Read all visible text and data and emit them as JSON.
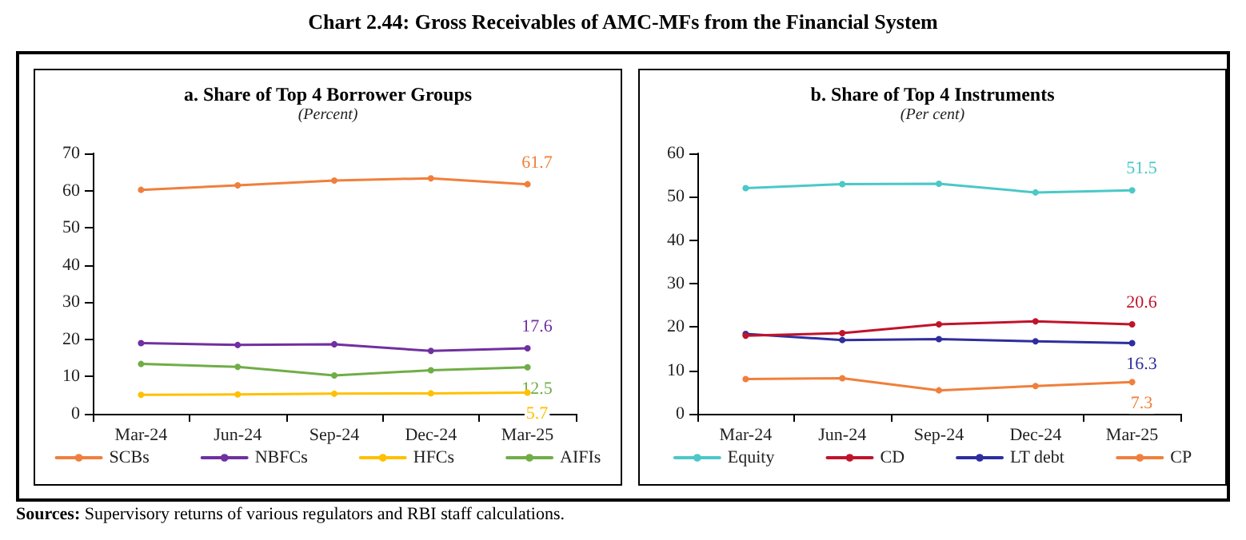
{
  "chart_data": [
    {
      "type": "line",
      "title": "a. Share of Top 4 Borrower Groups",
      "subtitle": "(Percent)",
      "annotations": [
        "Chart 2.44: Gross Receivables of AMC-MFs from the Financial System",
        "Sources: Supervisory returns of various regulators and RBI staff calculations."
      ],
      "categories": [
        "Mar-24",
        "Jun-24",
        "Sep-24",
        "Dec-24",
        "Mar-25"
      ],
      "ylim": [
        0,
        70
      ],
      "yticks": [
        0,
        10,
        20,
        30,
        40,
        50,
        60,
        70
      ],
      "grid": false,
      "legend": "bottom",
      "marker": "circle",
      "line_style": "solid",
      "series": [
        {
          "name": "SCBs",
          "color": "#f07f3c",
          "values": [
            60.2,
            61.4,
            62.7,
            63.3,
            61.7
          ],
          "value_labels": [
            null,
            null,
            null,
            null,
            "61.7"
          ]
        },
        {
          "name": "NBFCs",
          "color": "#7030a0",
          "values": [
            19.0,
            18.5,
            18.7,
            16.9,
            17.6
          ],
          "value_labels": [
            null,
            null,
            null,
            null,
            "17.6"
          ]
        },
        {
          "name": "HFCs",
          "color": "#ffc000",
          "values": [
            5.1,
            5.2,
            5.4,
            5.5,
            5.7
          ],
          "value_labels": [
            null,
            null,
            null,
            null,
            "5.7"
          ]
        },
        {
          "name": "AIFIs",
          "color": "#70ad47",
          "values": [
            13.4,
            12.6,
            10.3,
            11.7,
            12.5
          ],
          "value_labels": [
            null,
            null,
            null,
            null,
            "12.5"
          ]
        }
      ]
    },
    {
      "type": "line",
      "title": "b. Share of Top 4 Instruments",
      "subtitle": "(Per cent)",
      "categories": [
        "Mar-24",
        "Jun-24",
        "Sep-24",
        "Dec-24",
        "Mar-25"
      ],
      "ylim": [
        0,
        60
      ],
      "yticks": [
        0,
        10,
        20,
        30,
        40,
        50,
        60
      ],
      "grid": false,
      "legend": "bottom",
      "marker": "circle",
      "line_style": "solid",
      "series": [
        {
          "name": "Equity",
          "color": "#4bc8c8",
          "values": [
            52.0,
            52.9,
            53.0,
            51.0,
            51.5
          ],
          "value_labels": [
            null,
            null,
            null,
            null,
            "51.5"
          ]
        },
        {
          "name": "CD",
          "color": "#c0142a",
          "values": [
            18.0,
            18.6,
            20.6,
            21.3,
            20.6
          ],
          "value_labels": [
            null,
            null,
            null,
            null,
            "20.6"
          ]
        },
        {
          "name": "LT debt",
          "color": "#2e2e9e",
          "values": [
            18.4,
            17.0,
            17.2,
            16.7,
            16.3
          ],
          "value_labels": [
            null,
            null,
            null,
            null,
            "16.3"
          ]
        },
        {
          "name": "CP",
          "color": "#f07f3c",
          "values": [
            8.0,
            8.2,
            5.4,
            6.4,
            7.3
          ],
          "value_labels": [
            null,
            null,
            null,
            null,
            "7.3"
          ]
        }
      ]
    }
  ]
}
